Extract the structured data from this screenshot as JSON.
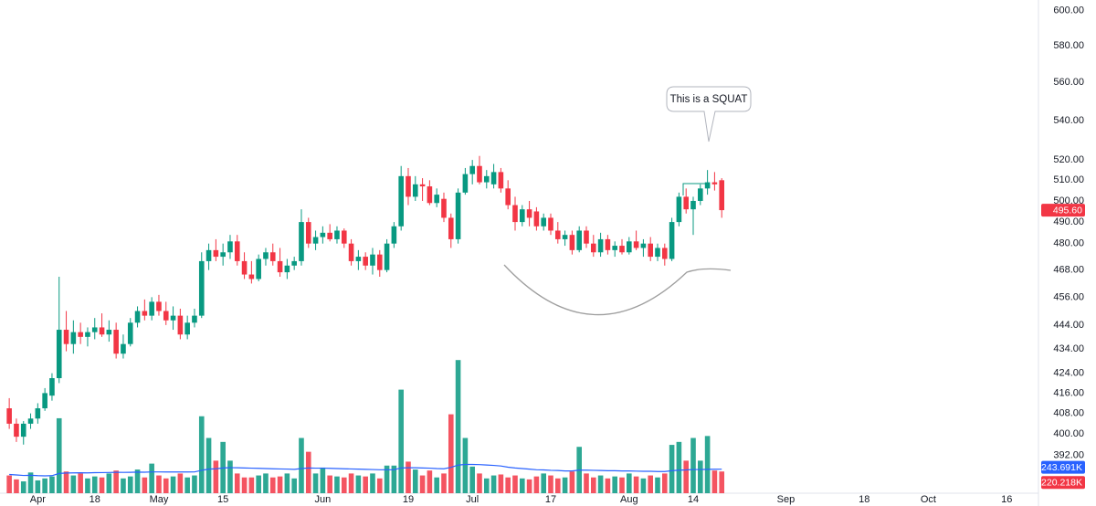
{
  "chart_data": {
    "type": "candlestick",
    "log_scale": true,
    "grid": false,
    "up_color": "#089981",
    "down_color": "#f23645",
    "open": [
      410,
      404,
      399,
      404,
      406,
      410,
      415,
      422,
      442,
      436,
      441,
      439,
      441,
      443,
      440,
      442,
      432,
      436,
      445,
      450,
      448,
      454,
      450,
      446,
      448,
      440,
      445,
      448,
      472,
      477,
      474,
      476,
      481,
      472,
      466,
      464,
      473,
      476,
      472,
      467,
      470,
      472,
      490,
      480,
      483,
      485,
      482,
      486,
      480,
      472,
      474,
      470,
      475,
      468,
      480,
      488,
      512,
      502,
      508,
      507,
      499,
      501,
      492,
      482,
      504,
      513,
      517,
      509,
      508,
      514,
      506,
      498,
      490,
      496,
      495,
      488,
      492,
      486,
      482,
      484,
      477,
      486,
      480,
      476,
      482,
      477,
      479,
      476,
      481,
      478,
      480,
      474,
      478,
      473,
      490,
      502,
      496,
      500,
      506,
      509,
      510
    ],
    "high": [
      414,
      406,
      405,
      408,
      412,
      418,
      424,
      465,
      450,
      446,
      445,
      443,
      447,
      449,
      446,
      445,
      440,
      447,
      452,
      455,
      456,
      457,
      454,
      452,
      451,
      448,
      451,
      476,
      480,
      482,
      480,
      484,
      484,
      476,
      472,
      475,
      478,
      480,
      478,
      473,
      474,
      496,
      492,
      486,
      488,
      489,
      488,
      487,
      482,
      477,
      476,
      478,
      477,
      482,
      490,
      517,
      516,
      512,
      511,
      510,
      506,
      504,
      494,
      506,
      516,
      520,
      522,
      515,
      518,
      516,
      510,
      502,
      498,
      500,
      497,
      494,
      494,
      490,
      486,
      486,
      488,
      488,
      484,
      485,
      484,
      481,
      482,
      483,
      486,
      482,
      483,
      480,
      480,
      492,
      504,
      506,
      502,
      508,
      515,
      514,
      511
    ],
    "low": [
      402,
      397,
      396,
      402,
      404,
      409,
      413,
      420,
      433,
      432,
      436,
      435,
      438,
      439,
      437,
      430,
      430,
      435,
      443,
      446,
      446,
      448,
      444,
      442,
      438,
      438,
      443,
      447,
      468,
      472,
      470,
      473,
      470,
      464,
      462,
      463,
      470,
      470,
      465,
      464,
      468,
      470,
      478,
      477,
      480,
      481,
      480,
      478,
      470,
      468,
      468,
      466,
      465,
      467,
      478,
      486,
      498,
      500,
      500,
      498,
      497,
      490,
      478,
      480,
      503,
      508,
      508,
      506,
      506,
      504,
      496,
      486,
      488,
      488,
      486,
      486,
      484,
      480,
      479,
      475,
      476,
      478,
      474,
      474,
      475,
      474,
      475,
      475,
      477,
      474,
      472,
      472,
      470,
      472,
      488,
      494,
      484,
      498,
      503,
      505,
      492
    ],
    "close": [
      404,
      399,
      404,
      406,
      410,
      416,
      422,
      442,
      436,
      441,
      439,
      441,
      443,
      440,
      442,
      432,
      436,
      445,
      450,
      448,
      454,
      450,
      446,
      448,
      440,
      445,
      448,
      472,
      477,
      474,
      476,
      481,
      472,
      466,
      464,
      473,
      476,
      472,
      467,
      470,
      472,
      490,
      480,
      483,
      485,
      482,
      486,
      480,
      472,
      474,
      470,
      475,
      468,
      480,
      488,
      512,
      502,
      508,
      507,
      499,
      503,
      492,
      482,
      504,
      513,
      517,
      509,
      512,
      514,
      506,
      498,
      490,
      496,
      492,
      488,
      492,
      486,
      482,
      484,
      477,
      486,
      480,
      476,
      482,
      477,
      479,
      476,
      481,
      478,
      480,
      474,
      478,
      473,
      490,
      502,
      496,
      500,
      506,
      509,
      508,
      495.6
    ],
    "last_price_label": "495.60",
    "ylim": [
      378,
      606
    ],
    "yticks": [
      {
        "value": 600,
        "label": "600.00"
      },
      {
        "value": 580,
        "label": "580.00"
      },
      {
        "value": 560,
        "label": "560.00"
      },
      {
        "value": 540,
        "label": "540.00"
      },
      {
        "value": 520,
        "label": "520.00"
      },
      {
        "value": 510,
        "label": "510.00"
      },
      {
        "value": 500,
        "label": "500.00"
      },
      {
        "value": 490,
        "label": "490.00"
      },
      {
        "value": 480,
        "label": "480.00"
      },
      {
        "value": 468,
        "label": "468.00"
      },
      {
        "value": 456,
        "label": "456.00"
      },
      {
        "value": 444,
        "label": "444.00"
      },
      {
        "value": 434,
        "label": "434.00"
      },
      {
        "value": 424,
        "label": "424.00"
      },
      {
        "value": 416,
        "label": "416.00"
      },
      {
        "value": 408,
        "label": "408.00"
      },
      {
        "value": 400,
        "label": "400.00"
      },
      {
        "value": 392,
        "label": "392.00"
      }
    ],
    "xlim": [
      -1.3,
      144.2
    ],
    "xticks": [
      {
        "value": 4,
        "label": "Apr"
      },
      {
        "value": 12,
        "label": "18"
      },
      {
        "value": 21,
        "label": "May"
      },
      {
        "value": 30,
        "label": "15"
      },
      {
        "value": 44,
        "label": "Jun"
      },
      {
        "value": 56,
        "label": "19"
      },
      {
        "value": 65,
        "label": "Jul"
      },
      {
        "value": 76,
        "label": "17"
      },
      {
        "value": 87,
        "label": "Aug"
      },
      {
        "value": 96,
        "label": "14"
      },
      {
        "value": 109,
        "label": "Sep"
      },
      {
        "value": 120,
        "label": "18"
      },
      {
        "value": 129,
        "label": "Oct"
      },
      {
        "value": 140,
        "label": "16"
      }
    ],
    "volume": {
      "ylim": [
        0,
        5000000
      ],
      "last_label": "220.218K",
      "values": [
        180000,
        140000,
        120000,
        210000,
        130000,
        150000,
        170000,
        760000,
        220000,
        180000,
        200000,
        150000,
        170000,
        160000,
        200000,
        230000,
        150000,
        170000,
        240000,
        160000,
        300000,
        180000,
        150000,
        170000,
        200000,
        160000,
        180000,
        780000,
        560000,
        330000,
        520000,
        330000,
        200000,
        160000,
        160000,
        180000,
        200000,
        160000,
        170000,
        200000,
        150000,
        560000,
        420000,
        200000,
        260000,
        180000,
        170000,
        160000,
        200000,
        180000,
        170000,
        200000,
        150000,
        280000,
        280000,
        1050000,
        320000,
        240000,
        180000,
        230000,
        160000,
        200000,
        800000,
        1350000,
        560000,
        270000,
        200000,
        150000,
        180000,
        190000,
        160000,
        180000,
        150000,
        140000,
        170000,
        200000,
        180000,
        150000,
        160000,
        220000,
        470000,
        200000,
        160000,
        180000,
        150000,
        170000,
        160000,
        200000,
        170000,
        150000,
        180000,
        160000,
        200000,
        490000,
        520000,
        330000,
        560000,
        330000,
        580000,
        230000,
        220218
      ]
    },
    "volume_ma": {
      "color": "#2962ff",
      "last_label": "243.691K",
      "values": [
        190000,
        185000,
        180000,
        182000,
        178000,
        176000,
        178000,
        200000,
        205000,
        206000,
        207000,
        206000,
        208000,
        209000,
        210000,
        212000,
        211000,
        212000,
        214000,
        213000,
        216000,
        216000,
        215000,
        215000,
        216000,
        215000,
        216000,
        232000,
        244000,
        248000,
        256000,
        259000,
        258000,
        256000,
        254000,
        252000,
        250000,
        248000,
        246000,
        245000,
        242000,
        250000,
        256000,
        254000,
        254000,
        252000,
        250000,
        248000,
        246000,
        244000,
        242000,
        240000,
        238000,
        238000,
        238000,
        256000,
        258000,
        258000,
        256000,
        254000,
        250000,
        248000,
        262000,
        285000,
        292000,
        292000,
        290000,
        286000,
        282000,
        276000,
        264000,
        256000,
        250000,
        244000,
        238000,
        236000,
        232000,
        230000,
        226000,
        226000,
        234000,
        234000,
        232000,
        230000,
        228000,
        228000,
        226000,
        226000,
        224000,
        222000,
        222000,
        220000,
        220000,
        228000,
        234000,
        236000,
        240000,
        240000,
        242000,
        243000,
        243691
      ]
    },
    "annotation": "This is a SQUAT"
  }
}
